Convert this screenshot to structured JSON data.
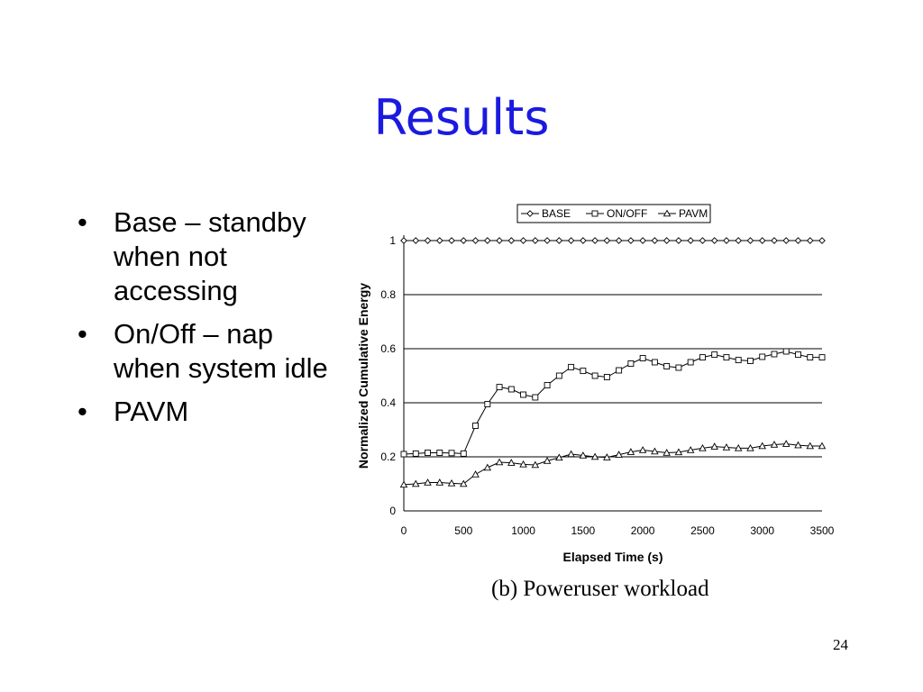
{
  "slide": {
    "title": "Results",
    "bullets": [
      "Base – standby when not accessing",
      "On/Off – nap when system idle",
      "PAVM"
    ],
    "caption": "(b) Poweruser workload",
    "page_number": "24"
  },
  "chart_data": {
    "type": "line",
    "xlabel": "Elapsed Time (s)",
    "ylabel": "Normalized Cumulative Energy",
    "xlim": [
      0,
      3500
    ],
    "ylim": [
      0,
      1
    ],
    "xticks": [
      "0",
      "500",
      "1000",
      "1500",
      "2000",
      "2500",
      "3000",
      "3500"
    ],
    "yticks": [
      "0",
      "0.2",
      "0.4",
      "0.6",
      "0.8",
      "1"
    ],
    "grid": "horizontal",
    "legend_position": "top",
    "x": [
      0,
      100,
      200,
      300,
      400,
      500,
      600,
      700,
      800,
      900,
      1000,
      1100,
      1200,
      1300,
      1400,
      1500,
      1600,
      1700,
      1800,
      1900,
      2000,
      2100,
      2200,
      2300,
      2400,
      2500,
      2600,
      2700,
      2800,
      2900,
      3000,
      3100,
      3200,
      3300,
      3400,
      3500
    ],
    "series": [
      {
        "name": "BASE",
        "marker": "diamond",
        "values": [
          1,
          1,
          1,
          1,
          1,
          1,
          1,
          1,
          1,
          1,
          1,
          1,
          1,
          1,
          1,
          1,
          1,
          1,
          1,
          1,
          1,
          1,
          1,
          1,
          1,
          1,
          1,
          1,
          1,
          1,
          1,
          1,
          1,
          1,
          1,
          1
        ]
      },
      {
        "name": "ON/OFF",
        "marker": "square",
        "values": [
          0.21,
          0.212,
          0.215,
          0.215,
          0.214,
          0.212,
          0.315,
          0.395,
          0.458,
          0.45,
          0.43,
          0.42,
          0.465,
          0.5,
          0.532,
          0.518,
          0.5,
          0.495,
          0.52,
          0.545,
          0.565,
          0.55,
          0.535,
          0.53,
          0.55,
          0.568,
          0.578,
          0.568,
          0.558,
          0.555,
          0.57,
          0.58,
          0.59,
          0.578,
          0.568,
          0.568
        ]
      },
      {
        "name": "PAVM",
        "marker": "triangle",
        "values": [
          0.097,
          0.1,
          0.105,
          0.105,
          0.102,
          0.1,
          0.135,
          0.16,
          0.18,
          0.178,
          0.172,
          0.17,
          0.185,
          0.197,
          0.21,
          0.205,
          0.2,
          0.198,
          0.208,
          0.218,
          0.225,
          0.22,
          0.215,
          0.217,
          0.225,
          0.232,
          0.238,
          0.235,
          0.232,
          0.232,
          0.24,
          0.245,
          0.248,
          0.243,
          0.24,
          0.24
        ]
      }
    ]
  }
}
